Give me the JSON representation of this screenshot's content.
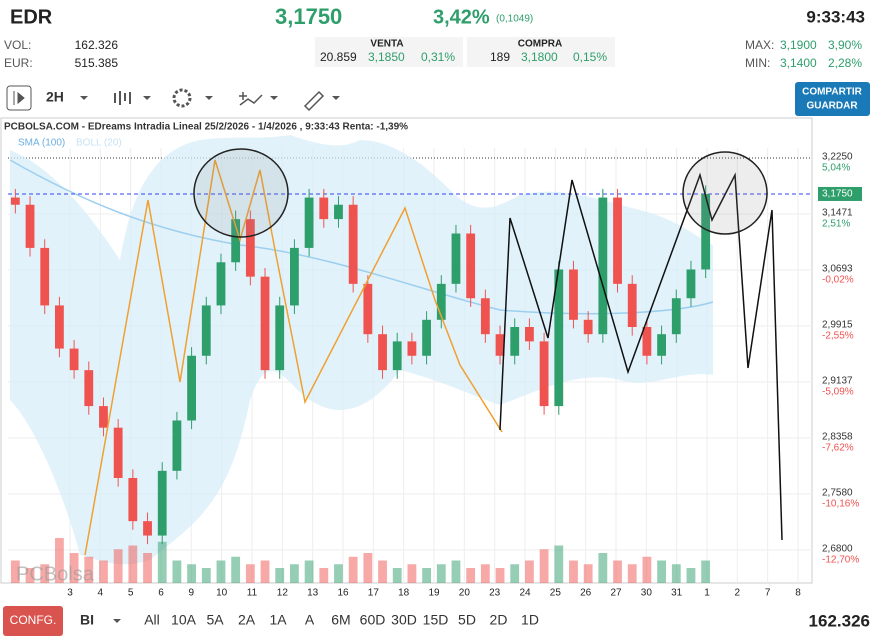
{
  "header": {
    "symbol": "EDR",
    "price": "3,1750",
    "change_pct": "3,42%",
    "change_abs": "(0,1049)",
    "time": "9:33:43",
    "vol_label": "VOL:",
    "vol": "162.326",
    "eur_label": "EUR:",
    "eur": "515.385",
    "venta": {
      "title": "VENTA",
      "qty": "20.859",
      "price": "3,1850",
      "pct": "0,31%"
    },
    "compra": {
      "title": "COMPRA",
      "qty": "189",
      "price": "3,1800",
      "pct": "0,15%"
    },
    "max_label": "MAX:",
    "max": "3,1900",
    "max_pct": "3,90%",
    "min_label": "MIN:",
    "min": "3,1400",
    "min_pct": "2,28%"
  },
  "toolbar": {
    "interval": "2H",
    "share_lines": [
      "COMPARTIR",
      "GUARDAR"
    ]
  },
  "chart_data": {
    "type": "candlestick",
    "title": "PCBOLSA.COM - EDreams Intradia Lineal 25/2/2026 - 1/4/2026 , 9:33:43 Renta: -1,39%",
    "indicators": [
      "SMA (100)",
      "BOLL (20)"
    ],
    "watermark": "PCBolsa",
    "xlabels": [
      "3",
      "4",
      "5",
      "6",
      "9",
      "10",
      "11",
      "12",
      "13",
      "16",
      "17",
      "18",
      "19",
      "20",
      "23",
      "24",
      "25",
      "26",
      "27",
      "30",
      "31",
      "1",
      "2",
      "7",
      "8"
    ],
    "open": [
      3.17,
      3.16,
      3.1,
      3.02,
      2.96,
      2.93,
      2.88,
      2.85,
      2.78,
      2.72,
      2.7,
      2.79,
      2.86,
      2.95,
      3.02,
      3.08,
      3.14,
      3.06,
      2.93,
      3.02,
      3.1,
      3.17,
      3.14,
      3.16,
      3.05,
      2.98,
      2.93,
      2.97,
      2.95,
      3.0,
      3.05,
      3.12,
      3.03,
      2.98,
      2.95,
      2.99,
      2.97,
      2.88,
      3.07,
      3.0,
      2.98,
      3.17,
      3.05,
      2.99,
      2.95,
      2.98,
      3.03,
      3.07
    ],
    "high": [
      3.182,
      3.172,
      3.112,
      3.032,
      2.972,
      2.942,
      2.892,
      2.862,
      2.792,
      2.732,
      2.802,
      2.872,
      2.962,
      3.032,
      3.092,
      3.152,
      3.152,
      3.072,
      3.032,
      3.112,
      3.182,
      3.182,
      3.172,
      3.172,
      3.062,
      2.992,
      2.982,
      2.982,
      3.012,
      3.062,
      3.132,
      3.132,
      3.042,
      2.992,
      3.002,
      3.002,
      2.982,
      3.082,
      3.082,
      3.012,
      3.182,
      3.182,
      3.062,
      3.002,
      2.992,
      3.042,
      3.082,
      3.187
    ],
    "low": [
      3.148,
      3.088,
      3.008,
      2.948,
      2.918,
      2.868,
      2.838,
      2.768,
      2.708,
      2.688,
      2.688,
      2.778,
      2.848,
      2.938,
      3.008,
      3.068,
      3.048,
      2.918,
      2.918,
      3.008,
      3.088,
      3.128,
      3.128,
      3.038,
      2.968,
      2.918,
      2.918,
      2.938,
      2.938,
      2.988,
      3.038,
      3.018,
      2.968,
      2.938,
      2.938,
      2.958,
      2.868,
      2.868,
      2.988,
      2.968,
      2.968,
      3.038,
      2.978,
      2.938,
      2.938,
      2.968,
      3.018,
      3.058
    ],
    "close": [
      3.16,
      3.1,
      3.02,
      2.96,
      2.93,
      2.88,
      2.85,
      2.78,
      2.72,
      2.7,
      2.79,
      2.86,
      2.95,
      3.02,
      3.08,
      3.14,
      3.06,
      2.93,
      3.02,
      3.1,
      3.17,
      3.14,
      3.16,
      3.05,
      2.98,
      2.93,
      2.97,
      2.95,
      3.0,
      3.05,
      3.12,
      3.03,
      2.98,
      2.95,
      2.99,
      2.97,
      2.88,
      3.07,
      3.0,
      2.98,
      3.17,
      3.05,
      2.99,
      2.95,
      2.98,
      3.03,
      3.07,
      3.175
    ],
    "volume": [
      30,
      20,
      25,
      60,
      40,
      35,
      30,
      45,
      50,
      40,
      55,
      30,
      25,
      20,
      30,
      35,
      25,
      30,
      20,
      25,
      30,
      20,
      25,
      35,
      40,
      30,
      20,
      25,
      20,
      25,
      30,
      20,
      25,
      20,
      25,
      30,
      45,
      50,
      30,
      25,
      40,
      30,
      25,
      35,
      30,
      25,
      20,
      30
    ],
    "up_color": "#2e9e6b",
    "down_color": "#ef5350",
    "ylim": [
      2.634,
      3.257
    ],
    "yticks": [
      {
        "value": 3.225,
        "label": "3,2250"
      },
      {
        "value": 3.1471,
        "label": "3,1471"
      },
      {
        "value": 3.0693,
        "label": "3,0693"
      },
      {
        "value": 2.9915,
        "label": "2,9915"
      },
      {
        "value": 2.9137,
        "label": "2,9137"
      },
      {
        "value": 2.8358,
        "label": "2,8358"
      },
      {
        "value": 2.758,
        "label": "2,7580"
      },
      {
        "value": 2.68,
        "label": "2,6800"
      }
    ],
    "ytick_pcts": [
      "5,04%",
      "2,51%",
      "-0,02%",
      "-2,55%",
      "-5,09%",
      "-7,62%",
      "-10,16%",
      "-12,70%"
    ],
    "last_price": {
      "value": 3.175,
      "label": "3,1750"
    }
  },
  "footer": {
    "config": "CONFG.",
    "mode": "BI",
    "periods": [
      "All",
      "10A",
      "5A",
      "2A",
      "1A",
      "A",
      "6M",
      "60D",
      "30D",
      "15D",
      "5D",
      "2D",
      "1D"
    ],
    "volume": "162.326"
  }
}
